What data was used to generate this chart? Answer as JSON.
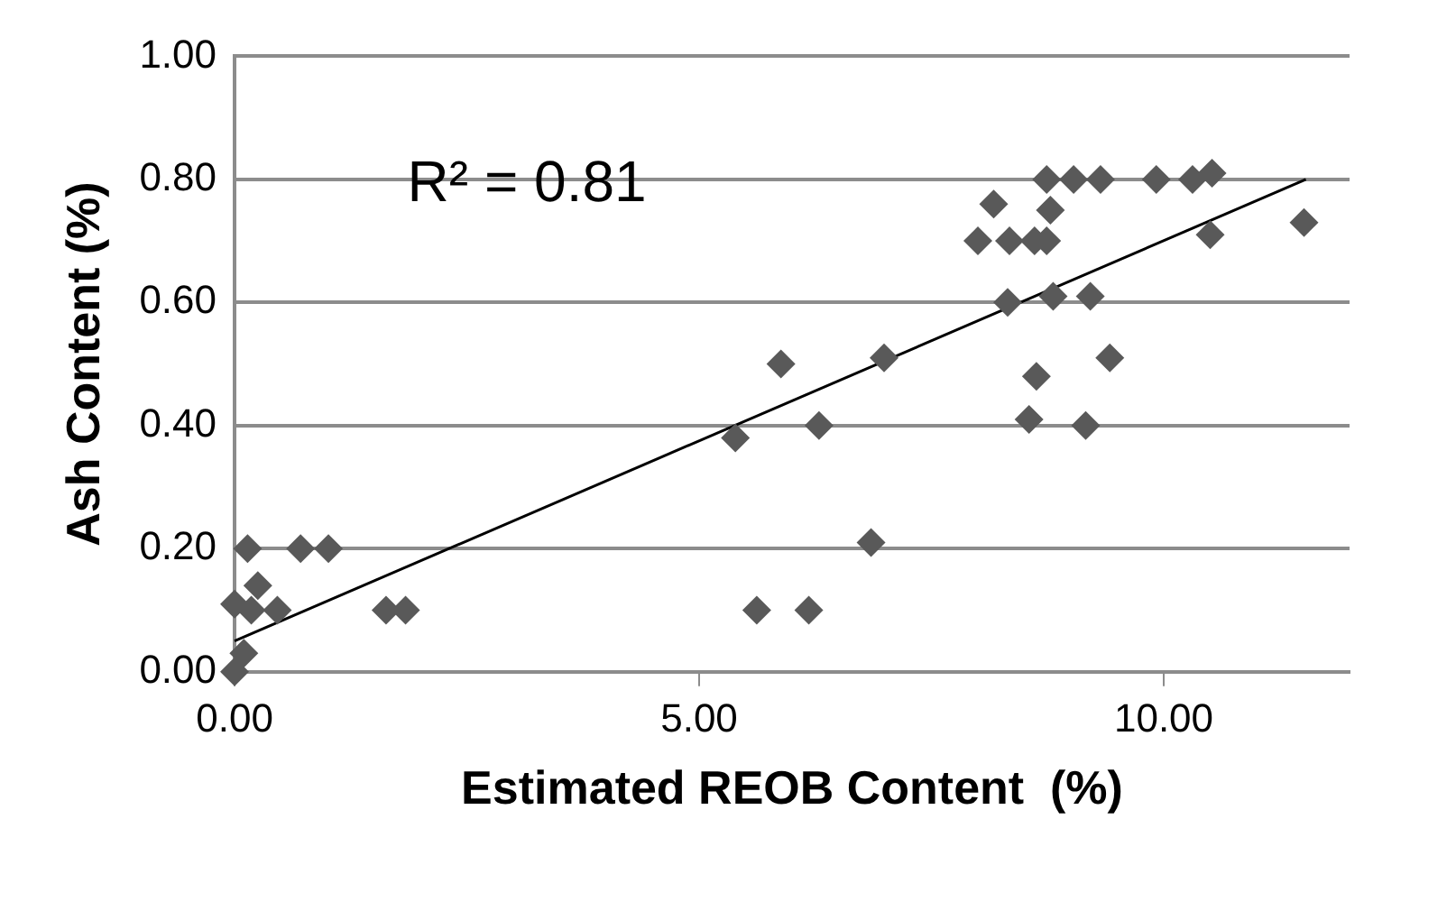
{
  "chart_data": {
    "type": "scatter",
    "xlabel": "Estimated REOB Content  (%)",
    "ylabel": "Ash Content (%)",
    "annotations": [
      "R² = 0.81"
    ],
    "xlim": [
      0,
      12
    ],
    "xticks": [
      {
        "value": 0,
        "label": "0.00"
      },
      {
        "value": 5,
        "label": "5.00"
      },
      {
        "value": 10,
        "label": "10.00"
      }
    ],
    "ylim": [
      0,
      1
    ],
    "yticks": [
      {
        "value": 0,
        "label": "0.00"
      },
      {
        "value": 0.2,
        "label": "0.20"
      },
      {
        "value": 0.4,
        "label": "0.40"
      },
      {
        "value": 0.6,
        "label": "0.60"
      },
      {
        "value": 0.8,
        "label": "0.80"
      },
      {
        "value": 1,
        "label": "1.00"
      }
    ],
    "grid": "y",
    "legend": false,
    "marker": "diamond",
    "series": [
      {
        "type": "scatter",
        "color": "#595959",
        "x": [
          0,
          0.1,
          0.14,
          0,
          0.25,
          0.18,
          0.46,
          0.71,
          1.01,
          1.63,
          1.84,
          5.39,
          5.88,
          5.62,
          6.18,
          6.29,
          6.85,
          6.99,
          8.0,
          8.17,
          8.34,
          8.32,
          8.55,
          8.63,
          8.61,
          8.74,
          8.74,
          8.78,
          8.81,
          9.03,
          9.16,
          9.21,
          9.32,
          9.42,
          9.92,
          10.31,
          10.52,
          10.5,
          11.51
        ],
        "values": [
          0,
          0.03,
          0.2,
          0.11,
          0.14,
          0.1,
          0.1,
          0.2,
          0.2,
          0.1,
          0.1,
          0.38,
          0.5,
          0.1,
          0.1,
          0.4,
          0.21,
          0.51,
          0.7,
          0.76,
          0.7,
          0.6,
          0.41,
          0.48,
          0.7,
          0.7,
          0.8,
          0.75,
          0.61,
          0.8,
          0.4,
          0.61,
          0.8,
          0.51,
          0.8,
          0.8,
          0.81,
          0.71,
          0.73
        ]
      },
      {
        "type": "line",
        "color": "#000000",
        "marker": "none",
        "x": [
          0,
          11.53
        ],
        "values": [
          0.05,
          0.8
        ]
      }
    ]
  }
}
